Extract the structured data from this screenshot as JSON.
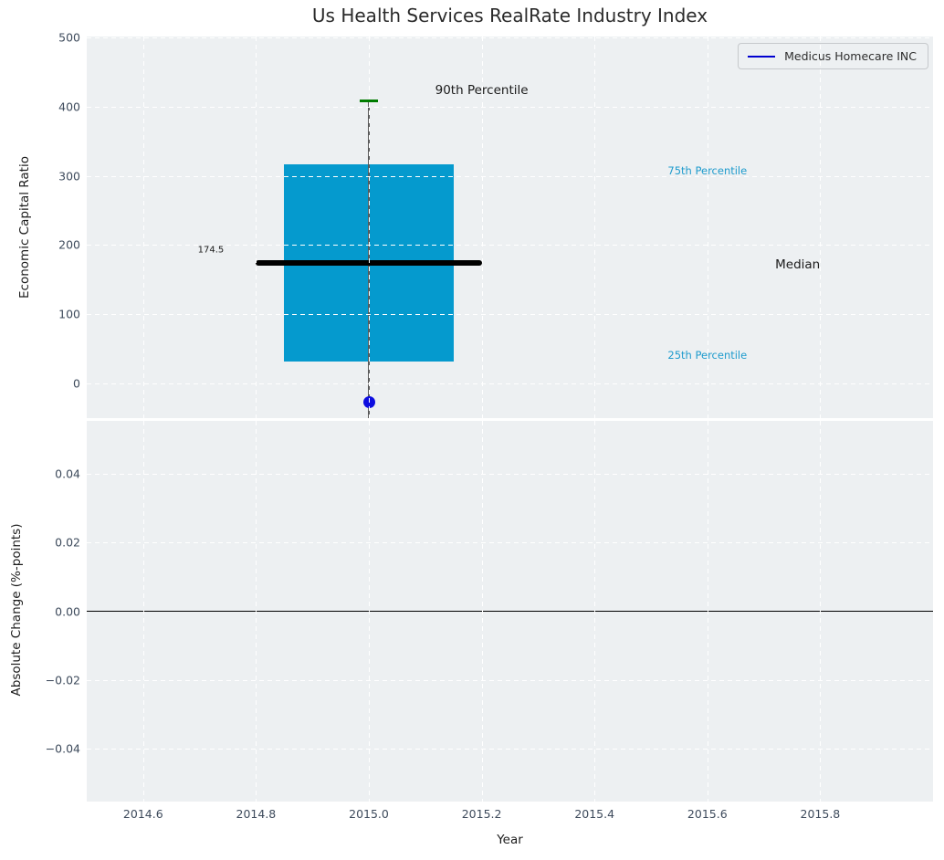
{
  "figure": {
    "title": "Us Health Services RealRate Industry Index",
    "axes_background": "#edf0f2",
    "grid_color": "#ffffff"
  },
  "legend": {
    "label": "Medicus Homecare INC",
    "line_color": "#0000d0"
  },
  "chart_data": [
    {
      "type": "box",
      "title": "Us Health Services RealRate Industry Index",
      "ylabel": "Economic Capital Ratio",
      "xlim": [
        2014.5,
        2016.0
      ],
      "ylim": [
        -50.5,
        501.5
      ],
      "grid": true,
      "legend_position": "upper right",
      "yticks": [
        {
          "v": 0,
          "label": "0"
        },
        {
          "v": 100,
          "label": "100"
        },
        {
          "v": 200,
          "label": "200"
        },
        {
          "v": 300,
          "label": "300"
        },
        {
          "v": 400,
          "label": "400"
        },
        {
          "v": 500,
          "label": "500"
        }
      ],
      "box": {
        "x": 2015.0,
        "p90": 408,
        "q3": 317,
        "median": 174.5,
        "q1": 32,
        "box_left": 2014.85,
        "box_right": 2015.15,
        "median_left": 2014.8,
        "median_right": 2015.2,
        "lower_whisker_clipped": true,
        "box_color": "#059ace",
        "median_color": "#000000",
        "whisker_color": "#5a5a5a",
        "cap_color": "#007c00"
      },
      "series": [
        {
          "name": "Medicus Homecare INC",
          "type": "scatter",
          "x": [
            2015.0
          ],
          "y": [
            -28
          ],
          "color": "#0d0de0"
        }
      ],
      "annotations": [
        {
          "id": "median-value",
          "text": "174.5",
          "x": 2014.72,
          "y": 192,
          "color": "#1a1a1a",
          "size": 10
        },
        {
          "id": "p90-label",
          "text": "90th Percentile",
          "x": 2015.2,
          "y": 424,
          "color": "#1a1a1a",
          "size": 13.5
        },
        {
          "id": "p75-label",
          "text": "75th Percentile",
          "x": 2015.6,
          "y": 308,
          "color": "#1e9bcd",
          "size": 11.5
        },
        {
          "id": "median-label",
          "text": "Median",
          "x": 2015.76,
          "y": 172,
          "color": "#1a1a1a",
          "size": 13.5
        },
        {
          "id": "p25-label",
          "text": "25th Percentile",
          "x": 2015.6,
          "y": 40,
          "color": "#1e9bcd",
          "size": 11.5
        }
      ]
    },
    {
      "type": "line",
      "ylabel": "Absolute Change (%-points)",
      "xlabel": "Year",
      "xlim": [
        2014.5,
        2016.0
      ],
      "ylim": [
        -0.0555,
        0.0555
      ],
      "grid": true,
      "zero_line": 0.0,
      "yticks": [
        {
          "v": 0.04,
          "label": "0.04"
        },
        {
          "v": 0.02,
          "label": "0.02"
        },
        {
          "v": 0,
          "label": "0.00"
        },
        {
          "v": -0.02,
          "label": "−0.02"
        },
        {
          "v": -0.04,
          "label": "−0.04"
        }
      ],
      "xticks": [
        {
          "v": 2014.6,
          "label": "2014.6"
        },
        {
          "v": 2014.8,
          "label": "2014.8"
        },
        {
          "v": 2015.0,
          "label": "2015.0"
        },
        {
          "v": 2015.2,
          "label": "2015.2"
        },
        {
          "v": 2015.4,
          "label": "2015.4"
        },
        {
          "v": 2015.6,
          "label": "2015.6"
        },
        {
          "v": 2015.8,
          "label": "2015.8"
        }
      ],
      "series": []
    }
  ]
}
